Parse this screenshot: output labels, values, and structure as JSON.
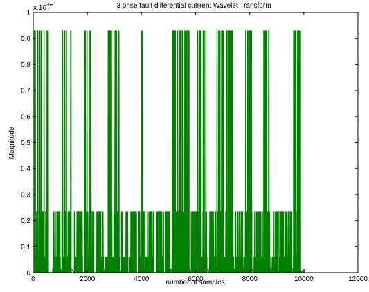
{
  "chart_data": {
    "type": "line",
    "title": "3 phse fault diiferential cutrrent Wavelet Transform",
    "xlabel": "number of samples",
    "ylabel": "Magnitude",
    "y_exponent_label": "x 10",
    "y_exponent_power": "-68",
    "xlim": [
      0,
      12000
    ],
    "ylim": [
      0,
      1
    ],
    "x_ticks": [
      "0",
      "2000",
      "4000",
      "6000",
      "8000",
      "10000",
      "12000"
    ],
    "y_ticks": [
      "0",
      "0.1",
      "0.2",
      "0.3",
      "0.4",
      "0.5",
      "0.6",
      "0.7",
      "0.8",
      "0.9",
      "1"
    ],
    "grid": false,
    "series": [
      {
        "color": "#008000",
        "levels": [
          0.0,
          0.015,
          0.06,
          0.235,
          0.93
        ],
        "bursts": [
          {
            "x0": 40,
            "x1": 560,
            "peak": 0.93
          },
          {
            "x0": 720,
            "x1": 1000,
            "peak": 0.235
          },
          {
            "x0": 1060,
            "x1": 1400,
            "peak": 0.93
          },
          {
            "x0": 1520,
            "x1": 1820,
            "peak": 0.235
          },
          {
            "x0": 1880,
            "x1": 2240,
            "peak": 0.93
          },
          {
            "x0": 2340,
            "x1": 2600,
            "peak": 0.235
          },
          {
            "x0": 2640,
            "x1": 3180,
            "peak": 0.93
          },
          {
            "x0": 3260,
            "x1": 3500,
            "peak": 0.235
          },
          {
            "x0": 3560,
            "x1": 3820,
            "peak": 0.235
          },
          {
            "x0": 3900,
            "x1": 4080,
            "peak": 0.93
          },
          {
            "x0": 4120,
            "x1": 4460,
            "peak": 0.235
          },
          {
            "x0": 4560,
            "x1": 4820,
            "peak": 0.235
          },
          {
            "x0": 4880,
            "x1": 5060,
            "peak": 0.235
          },
          {
            "x0": 5120,
            "x1": 5760,
            "peak": 0.93
          },
          {
            "x0": 5840,
            "x1": 6060,
            "peak": 0.235
          },
          {
            "x0": 6080,
            "x1": 6420,
            "peak": 0.93
          },
          {
            "x0": 6500,
            "x1": 6760,
            "peak": 0.235
          },
          {
            "x0": 6780,
            "x1": 7420,
            "peak": 0.93
          },
          {
            "x0": 7460,
            "x1": 7760,
            "peak": 0.235
          },
          {
            "x0": 7780,
            "x1": 8080,
            "peak": 0.93
          },
          {
            "x0": 8160,
            "x1": 8440,
            "peak": 0.235
          },
          {
            "x0": 8460,
            "x1": 8760,
            "peak": 0.93
          },
          {
            "x0": 8820,
            "x1": 9060,
            "peak": 0.235
          },
          {
            "x0": 9100,
            "x1": 9340,
            "peak": 0.235
          },
          {
            "x0": 9360,
            "x1": 9560,
            "peak": 0.235
          },
          {
            "x0": 9600,
            "x1": 9880,
            "peak": 0.93
          }
        ],
        "tail_x": [
          9880,
          10040
        ],
        "tail_value": 0.015
      }
    ]
  }
}
